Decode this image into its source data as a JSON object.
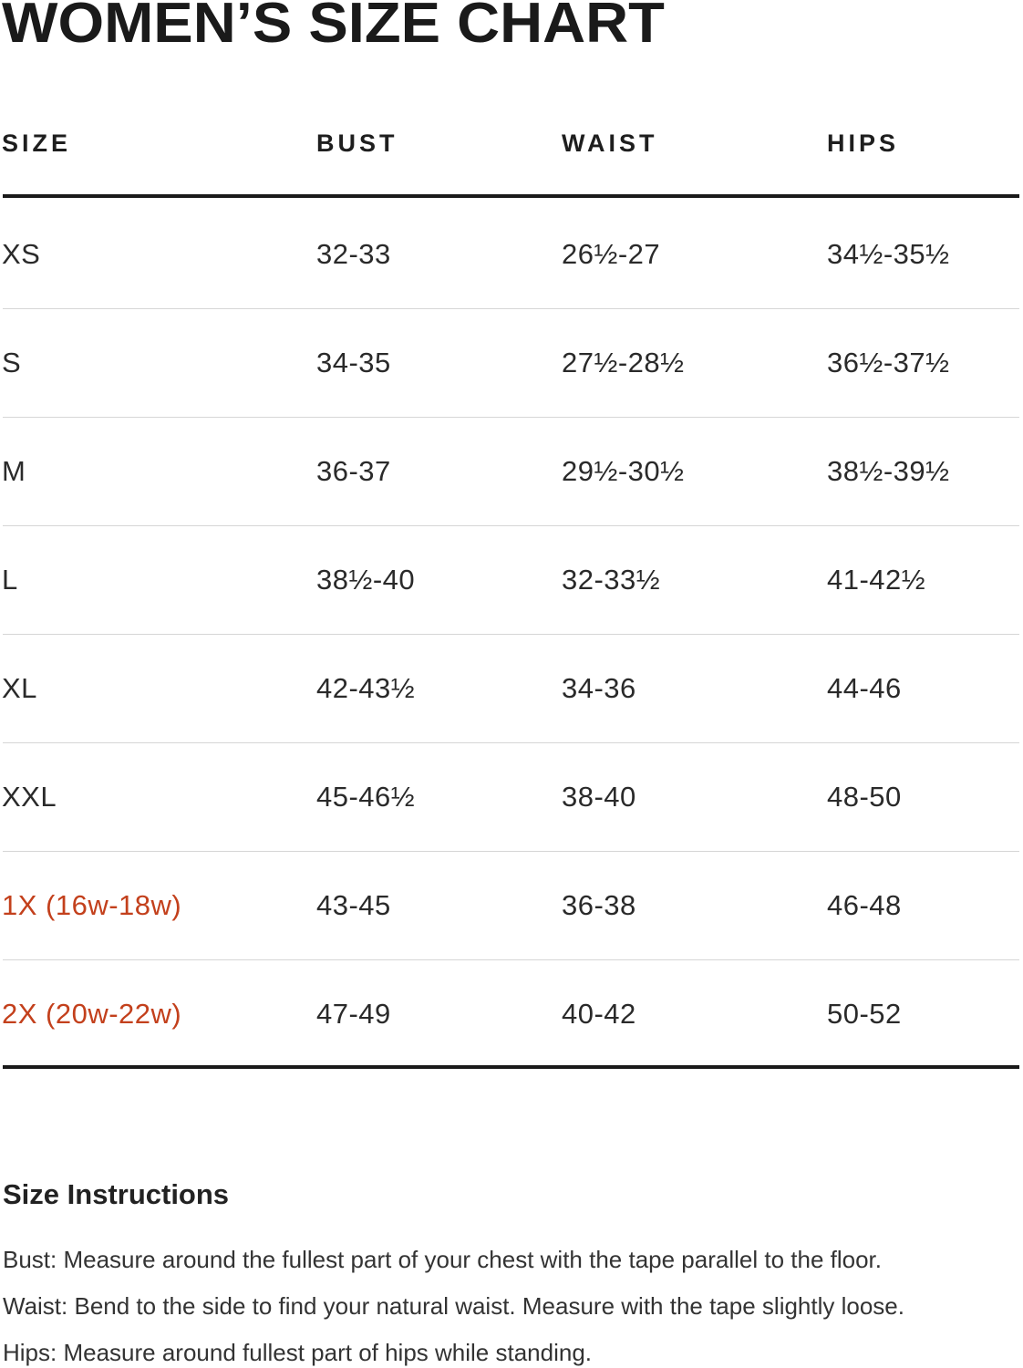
{
  "title": "WOMEN’S SIZE CHART",
  "table": {
    "headers": [
      "SIZE",
      "BUST",
      "WAIST",
      "HIPS"
    ],
    "rows": [
      [
        "XS",
        "32-33",
        "26½-27",
        "34½-35½"
      ],
      [
        "S",
        "34-35",
        "27½-28½",
        "36½-37½"
      ],
      [
        "M",
        "36-37",
        "29½-30½",
        "38½-39½"
      ],
      [
        "L",
        "38½-40",
        "32-33½",
        "41-42½"
      ],
      [
        "XL",
        "42-43½",
        "34-36",
        "44-46"
      ],
      [
        "XXL",
        "45-46½",
        "38-40",
        "48-50"
      ],
      [
        "1X (16w-18w)",
        "43-45",
        "36-38",
        "46-48"
      ],
      [
        "2X (20w-22w)",
        "47-49",
        "40-42",
        "50-52"
      ]
    ]
  },
  "instructions": {
    "title": "Size Instructions",
    "lines": [
      "Bust: Measure around the fullest part of your chest with the tape parallel to the floor.",
      "Waist: Bend to the side to find your natural waist. Measure with the tape slightly loose.",
      "Hips: Measure around fullest part of hips while standing."
    ]
  }
}
